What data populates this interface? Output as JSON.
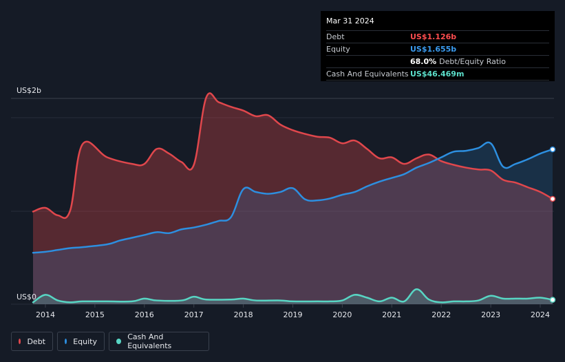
{
  "tooltip": {
    "date": "Mar 31 2024",
    "debt_label": "Debt",
    "debt_value": "US$1.126b",
    "equity_label": "Equity",
    "equity_value": "US$1.655b",
    "ratio_value": "68.0%",
    "ratio_label": "Debt/Equity Ratio",
    "cash_label": "Cash And Equivalents",
    "cash_value": "US$46.469m"
  },
  "legend": {
    "debt": "Debt",
    "equity": "Equity",
    "cash": "Cash And Equivalents"
  },
  "colors": {
    "debt": "#e0474c",
    "equity": "#2d8fe0",
    "cash": "#58d6c4",
    "value_debt": "#ff4d4f",
    "value_equity": "#3b9cf0",
    "value_cash": "#5ce0cb"
  },
  "chart_data": {
    "type": "area",
    "title": "",
    "xlabel": "",
    "ylabel": "",
    "y_top_label": "US$2b",
    "y_bottom_label": "US$0",
    "ylim": [
      0,
      2.2
    ],
    "xlim": [
      2013.0,
      2024.25
    ],
    "x_ticks": [
      2014,
      2015,
      2016,
      2017,
      2018,
      2019,
      2020,
      2021,
      2022,
      2023,
      2024
    ],
    "series": [
      {
        "name": "Debt",
        "unit": "US$b",
        "points": [
          [
            2013.75,
            0.99
          ],
          [
            2014.0,
            1.03
          ],
          [
            2014.25,
            0.95
          ],
          [
            2014.5,
            1.0
          ],
          [
            2014.75,
            1.71
          ],
          [
            2015.25,
            1.57
          ],
          [
            2015.75,
            1.5
          ],
          [
            2016.0,
            1.5
          ],
          [
            2016.25,
            1.66
          ],
          [
            2016.5,
            1.61
          ],
          [
            2016.75,
            1.52
          ],
          [
            2017.0,
            1.49
          ],
          [
            2017.25,
            2.21
          ],
          [
            2017.5,
            2.16
          ],
          [
            2017.75,
            2.11
          ],
          [
            2018.0,
            2.07
          ],
          [
            2018.25,
            2.01
          ],
          [
            2018.5,
            2.02
          ],
          [
            2018.75,
            1.92
          ],
          [
            2019.0,
            1.86
          ],
          [
            2019.25,
            1.82
          ],
          [
            2019.5,
            1.79
          ],
          [
            2019.75,
            1.78
          ],
          [
            2020.0,
            1.72
          ],
          [
            2020.25,
            1.75
          ],
          [
            2020.5,
            1.66
          ],
          [
            2020.75,
            1.56
          ],
          [
            2021.0,
            1.57
          ],
          [
            2021.25,
            1.5
          ],
          [
            2021.5,
            1.56
          ],
          [
            2021.75,
            1.6
          ],
          [
            2022.0,
            1.53
          ],
          [
            2022.25,
            1.49
          ],
          [
            2022.5,
            1.46
          ],
          [
            2022.75,
            1.44
          ],
          [
            2023.0,
            1.43
          ],
          [
            2023.25,
            1.33
          ],
          [
            2023.5,
            1.3
          ],
          [
            2023.75,
            1.25
          ],
          [
            2024.0,
            1.2
          ],
          [
            2024.25,
            1.126
          ]
        ]
      },
      {
        "name": "Equity",
        "unit": "US$b",
        "points": [
          [
            2013.75,
            0.55
          ],
          [
            2014.0,
            0.56
          ],
          [
            2014.25,
            0.58
          ],
          [
            2014.5,
            0.6
          ],
          [
            2014.75,
            0.61
          ],
          [
            2015.25,
            0.64
          ],
          [
            2015.5,
            0.68
          ],
          [
            2015.75,
            0.71
          ],
          [
            2016.0,
            0.74
          ],
          [
            2016.25,
            0.77
          ],
          [
            2016.5,
            0.76
          ],
          [
            2016.75,
            0.8
          ],
          [
            2017.0,
            0.82
          ],
          [
            2017.25,
            0.85
          ],
          [
            2017.5,
            0.89
          ],
          [
            2017.75,
            0.93
          ],
          [
            2018.0,
            1.23
          ],
          [
            2018.25,
            1.2
          ],
          [
            2018.5,
            1.18
          ],
          [
            2018.75,
            1.2
          ],
          [
            2019.0,
            1.24
          ],
          [
            2019.25,
            1.12
          ],
          [
            2019.5,
            1.11
          ],
          [
            2019.75,
            1.13
          ],
          [
            2020.0,
            1.17
          ],
          [
            2020.25,
            1.2
          ],
          [
            2020.5,
            1.26
          ],
          [
            2020.75,
            1.31
          ],
          [
            2021.0,
            1.35
          ],
          [
            2021.25,
            1.39
          ],
          [
            2021.5,
            1.46
          ],
          [
            2021.75,
            1.51
          ],
          [
            2022.0,
            1.57
          ],
          [
            2022.25,
            1.63
          ],
          [
            2022.5,
            1.64
          ],
          [
            2022.75,
            1.67
          ],
          [
            2023.0,
            1.72
          ],
          [
            2023.25,
            1.47
          ],
          [
            2023.5,
            1.5
          ],
          [
            2023.75,
            1.55
          ],
          [
            2024.0,
            1.61
          ],
          [
            2024.25,
            1.655
          ]
        ]
      },
      {
        "name": "Cash And Equivalents",
        "unit": "US$b",
        "points": [
          [
            2013.75,
            0.02
          ],
          [
            2014.0,
            0.1
          ],
          [
            2014.25,
            0.04
          ],
          [
            2014.5,
            0.02
          ],
          [
            2014.75,
            0.03
          ],
          [
            2015.25,
            0.03
          ],
          [
            2015.75,
            0.03
          ],
          [
            2016.0,
            0.06
          ],
          [
            2016.25,
            0.04
          ],
          [
            2016.75,
            0.04
          ],
          [
            2017.0,
            0.08
          ],
          [
            2017.25,
            0.05
          ],
          [
            2017.75,
            0.05
          ],
          [
            2018.0,
            0.06
          ],
          [
            2018.25,
            0.04
          ],
          [
            2018.75,
            0.04
          ],
          [
            2019.0,
            0.03
          ],
          [
            2019.5,
            0.03
          ],
          [
            2019.75,
            0.03
          ],
          [
            2020.0,
            0.04
          ],
          [
            2020.25,
            0.1
          ],
          [
            2020.5,
            0.07
          ],
          [
            2020.75,
            0.03
          ],
          [
            2021.0,
            0.07
          ],
          [
            2021.25,
            0.03
          ],
          [
            2021.5,
            0.16
          ],
          [
            2021.75,
            0.05
          ],
          [
            2022.0,
            0.02
          ],
          [
            2022.25,
            0.03
          ],
          [
            2022.5,
            0.03
          ],
          [
            2022.75,
            0.04
          ],
          [
            2023.0,
            0.09
          ],
          [
            2023.25,
            0.06
          ],
          [
            2023.5,
            0.06
          ],
          [
            2023.75,
            0.06
          ],
          [
            2024.0,
            0.07
          ],
          [
            2024.25,
            0.046469
          ]
        ]
      }
    ]
  }
}
